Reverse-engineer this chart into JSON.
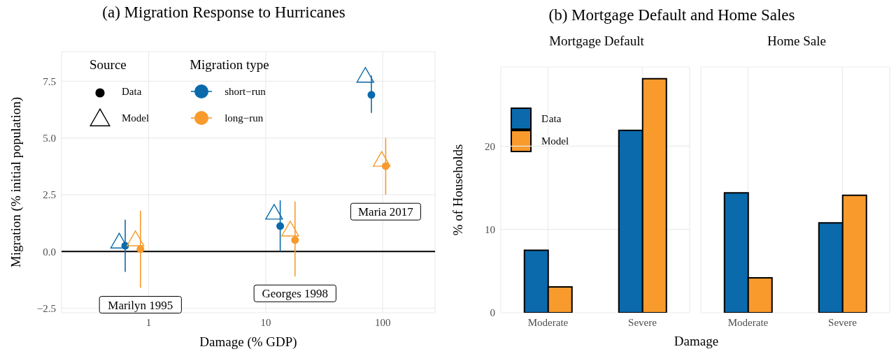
{
  "chart_data": [
    {
      "type": "scatter",
      "title": "(a) Migration Response to Hurricanes",
      "xlabel": "Damage (% GDP)",
      "ylabel": "Migration (% initial population)",
      "legend_title": "Migration type",
      "log": "x",
      "xlim": [
        0.18,
        280
      ],
      "xticks": [
        1,
        10,
        100
      ],
      "ylim": [
        -2.7,
        8.8
      ],
      "yticks": [
        {
          "value": -2.5,
          "label": "−2.5"
        },
        {
          "value": 0,
          "label": "0.0"
        },
        {
          "value": 2.5,
          "label": "2.5"
        },
        {
          "value": 5,
          "label": "5.0"
        },
        {
          "value": 7.5,
          "label": "7.5"
        }
      ],
      "grid": true,
      "legend": "top left",
      "ref_lines": [
        {
          "axis": "y",
          "value": 0,
          "color": "#000000"
        }
      ],
      "series": [
        {
          "name": "short−run",
          "color": "#0a6aab",
          "marker": "circle",
          "x": [
            0.63,
            13.3,
            80
          ],
          "values": [
            0.25,
            1.12,
            6.9
          ],
          "errors": [
            [
              -0.9,
              1.4
            ],
            [
              0,
              2.25
            ],
            [
              6.1,
              7.75
            ]
          ]
        },
        {
          "color": "#0a6aab",
          "marker": "triangle",
          "x": [
            0.56,
            11.8,
            71
          ],
          "values": [
            0.4,
            1.67,
            7.7
          ]
        },
        {
          "name": "long−run",
          "color": "#f89a2c",
          "marker": "circle",
          "x": [
            0.85,
            17.8,
            106
          ],
          "values": [
            0.1,
            0.5,
            3.76
          ],
          "errors": [
            [
              -1.6,
              1.8
            ],
            [
              -1.1,
              2.2
            ],
            [
              2.5,
              5.0
            ]
          ]
        },
        {
          "color": "#f89a2c",
          "marker": "triangle",
          "x": [
            0.77,
            16.2,
            98
          ],
          "values": [
            0.5,
            0.93,
            4.0
          ]
        }
      ],
      "annotations": [
        "Source",
        "Data",
        "Model",
        "Marilyn 1995",
        "Georges 1998",
        "Maria 2017"
      ]
    },
    {
      "type": "bar",
      "title": "(b) Mortgage Default and Home Sales",
      "subtitle": "Mortgage Default",
      "xlabel": "Damage",
      "ylabel": "% of Households",
      "categories": [
        "Moderate",
        "Severe"
      ],
      "ylim": [
        0,
        29.5
      ],
      "yticks": [
        0,
        10,
        20
      ],
      "grid": true,
      "legend": "top left",
      "series": [
        {
          "name": "Data",
          "color": "#0a6aab",
          "values": [
            7.5,
            21.9
          ]
        },
        {
          "name": "Model",
          "color": "#f89a2c",
          "values": [
            3.1,
            28.1
          ]
        }
      ]
    },
    {
      "type": "bar",
      "subtitle": "Home Sale",
      "categories": [
        "Moderate",
        "Severe"
      ],
      "ylim": [
        0,
        29.5
      ],
      "yticks": [
        0,
        10,
        20
      ],
      "grid": true,
      "tick_labels": "x",
      "series": [
        {
          "color": "#0a6aab",
          "values": [
            14.4,
            10.8
          ]
        },
        {
          "color": "#f89a2c",
          "values": [
            4.2,
            14.1
          ]
        }
      ]
    }
  ]
}
